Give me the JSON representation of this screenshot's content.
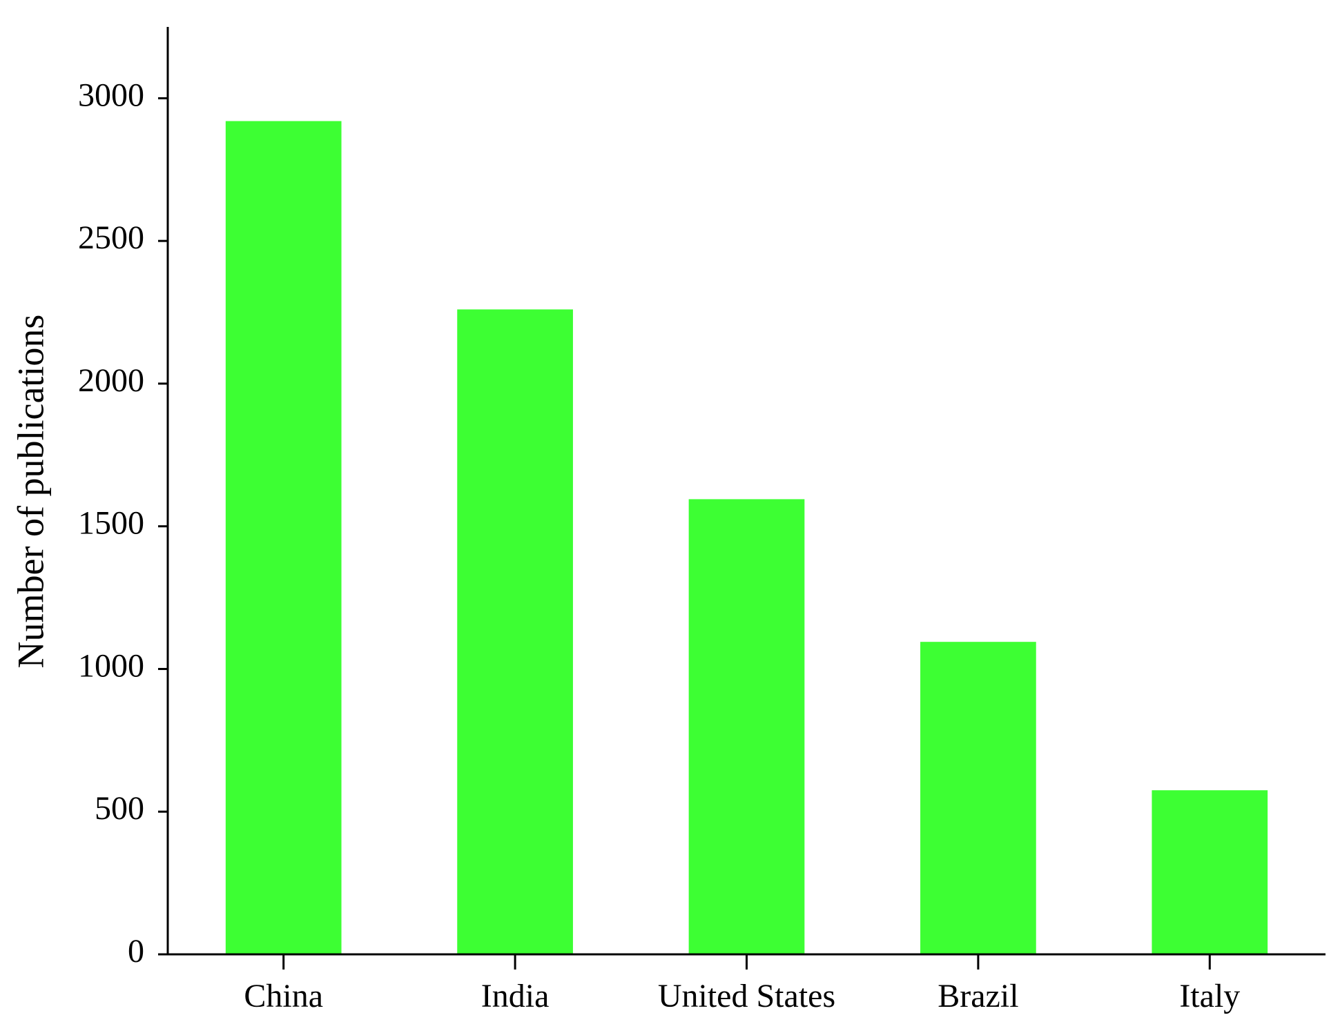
{
  "chart_data": {
    "type": "bar",
    "y_label": "Number of publications",
    "categories": [
      "China",
      "India",
      "United States",
      "Brazil",
      "Italy"
    ],
    "values": [
      2920,
      2260,
      1595,
      1095,
      575
    ],
    "color": "#3dff33",
    "ylim": [
      0,
      3250
    ],
    "yticks": [
      0,
      500,
      1000,
      1500,
      2000,
      2500,
      3000
    ],
    "grid": false
  }
}
